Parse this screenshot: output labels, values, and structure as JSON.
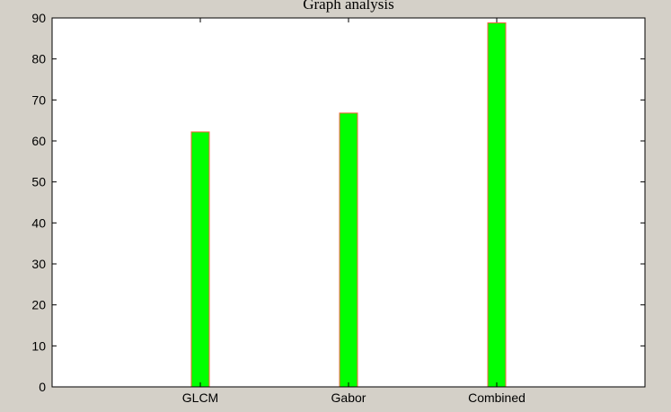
{
  "chart_data": {
    "type": "bar",
    "title": "Graph analysis",
    "categories": [
      "GLCM",
      "Gabor",
      "Combined"
    ],
    "values": [
      62.2,
      66.8,
      88.8
    ],
    "xlabel": "",
    "ylabel": "",
    "ylim": [
      0,
      90
    ],
    "yticks": [
      0,
      10,
      20,
      30,
      40,
      50,
      60,
      70,
      80,
      90
    ],
    "grid": false,
    "legend": "none",
    "bar_color": "#00ff00",
    "bar_edge_color": "#ff6040",
    "axes_background": "#ffffff",
    "figure_background": "#d4d0c8"
  }
}
